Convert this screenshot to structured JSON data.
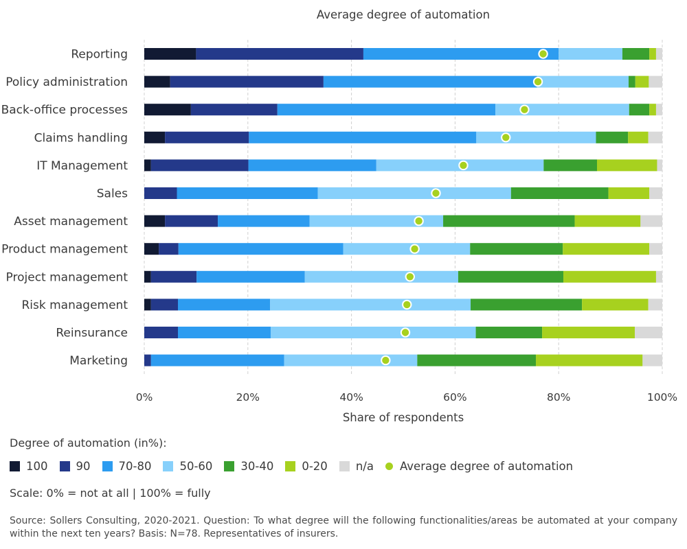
{
  "chart_data": {
    "type": "bar",
    "orientation": "horizontal",
    "stacked": true,
    "title": "Average degree of automation",
    "xlabel": "Share of respondents",
    "ylabel": "",
    "xlim": [
      0,
      100
    ],
    "x_ticks": [
      "0%",
      "20%",
      "40%",
      "60%",
      "80%",
      "100%"
    ],
    "grid": true,
    "categories": [
      "Reporting",
      "Policy administration",
      "Back-office processes",
      "Claims handling",
      "IT Management",
      "Sales",
      "Asset management",
      "Product management",
      "Project management",
      "Risk management",
      "Reinsurance",
      "Marketing"
    ],
    "series": [
      {
        "name": "100",
        "color": "#111a33",
        "values": [
          10,
          5,
          9,
          4,
          1.3,
          0,
          4,
          2.8,
          1.3,
          1.3,
          0,
          0
        ]
      },
      {
        "name": "90",
        "color": "#24398a",
        "values": [
          32.3,
          29.6,
          16.7,
          16.2,
          18.8,
          6.3,
          10.2,
          3.8,
          8.8,
          5.2,
          6.5,
          1.3
        ]
      },
      {
        "name": "70-80",
        "color": "#2d9cf0",
        "values": [
          37.7,
          41.2,
          42.1,
          43.9,
          24.7,
          27.2,
          17.7,
          31.8,
          20.9,
          17.8,
          17.9,
          25.7
        ]
      },
      {
        "name": "50-60",
        "color": "#87d0fb",
        "values": [
          12.3,
          17.7,
          25.8,
          23.1,
          32.3,
          37.3,
          25.8,
          24.5,
          29.6,
          38.7,
          39.6,
          25.7
        ]
      },
      {
        "name": "30-40",
        "color": "#3aa030",
        "values": [
          5.2,
          1.3,
          3.9,
          6.2,
          10.3,
          18.8,
          25.4,
          17.9,
          20.3,
          21.5,
          12.8,
          22.9
        ]
      },
      {
        "name": "0-20",
        "color": "#a7d11f",
        "values": [
          1.3,
          2.6,
          1.3,
          3.9,
          11.6,
          7.9,
          12.7,
          16.7,
          17.9,
          12.8,
          17.9,
          20.6
        ]
      },
      {
        "name": "n/a",
        "color": "#d9d9d9",
        "values": [
          1.2,
          2.6,
          1.2,
          2.7,
          1.0,
          2.5,
          4.2,
          2.5,
          1.2,
          2.7,
          5.3,
          3.8
        ]
      }
    ],
    "average": {
      "name": "Average degree of automation",
      "color": "#a7d11f",
      "values": [
        77,
        76,
        73.4,
        69.8,
        61.6,
        56.3,
        53,
        52.2,
        51.3,
        50.7,
        50.4,
        46.6
      ]
    }
  },
  "legend": {
    "title": "Degree of automation (in%):",
    "scale": "Scale: 0% = not at all | 100% = fully"
  },
  "source": "Source: Sollers Consulting, 2020-2021. Question: To what degree will the following functionalities/areas be automated at your company within the next ten years? Basis: N=78. Representatives of insurers."
}
